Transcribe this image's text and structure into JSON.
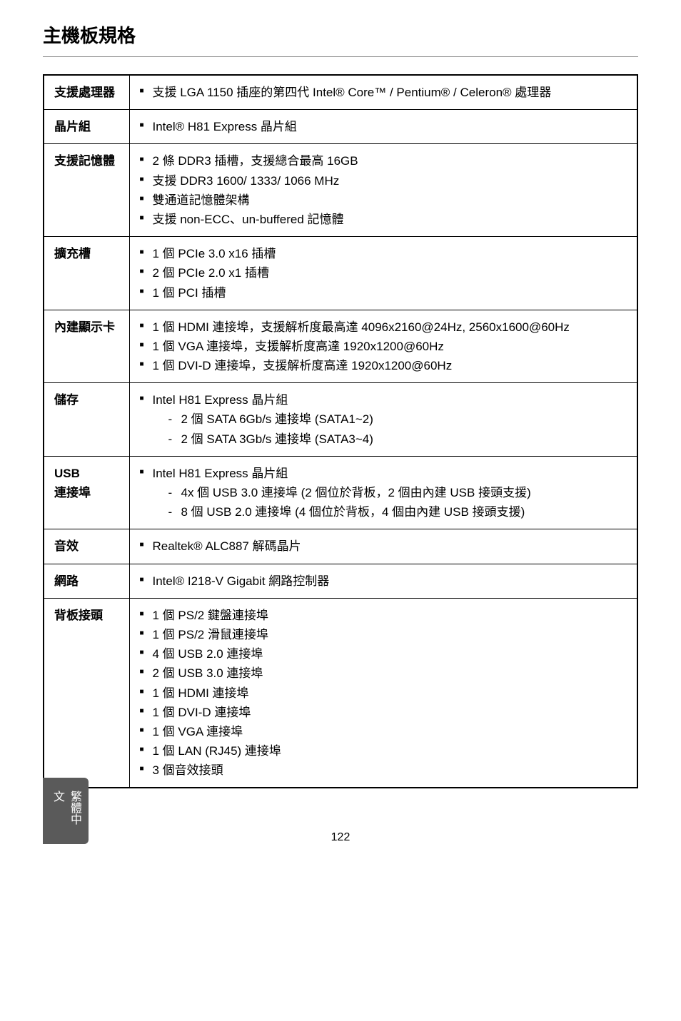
{
  "page": {
    "title": "主機板規格",
    "sideTab": "繁體中文",
    "pageNumber": "122"
  },
  "rows": [
    {
      "label": "支援處理器",
      "items": [
        {
          "text": "支援 LGA 1150 插座的第四代 Intel® Core™ / Pentium® / Celeron® 處理器"
        }
      ]
    },
    {
      "label": "晶片組",
      "items": [
        {
          "text": "Intel® H81 Express 晶片組"
        }
      ]
    },
    {
      "label": "支援記憶體",
      "items": [
        {
          "text": "2 條 DDR3 插槽，支援總合最高 16GB"
        },
        {
          "text": "支援 DDR3 1600/ 1333/ 1066 MHz"
        },
        {
          "text": "雙通道記憶體架構"
        },
        {
          "text": "支援 non-ECC、un-buffered 記憶體"
        }
      ]
    },
    {
      "label": "擴充槽",
      "items": [
        {
          "text": "1 個 PCIe 3.0 x16 插槽"
        },
        {
          "text": "2 個 PCIe 2.0 x1 插槽"
        },
        {
          "text": "1 個 PCI 插槽"
        }
      ]
    },
    {
      "label": "內建顯示卡",
      "items": [
        {
          "text": "1 個 HDMI 連接埠，支援解析度最高達 4096x2160@24Hz, 2560x1600@60Hz"
        },
        {
          "text": "1 個 VGA 連接埠，支援解析度高達 1920x1200@60Hz"
        },
        {
          "text": "1 個 DVI-D 連接埠，支援解析度高達 1920x1200@60Hz"
        }
      ]
    },
    {
      "label": "儲存",
      "items": [
        {
          "text": "Intel H81 Express 晶片組",
          "sub": [
            "2 個 SATA 6Gb/s 連接埠 (SATA1~2)",
            "2 個 SATA 3Gb/s 連接埠 (SATA3~4)"
          ]
        }
      ]
    },
    {
      "label": "USB\n連接埠",
      "items": [
        {
          "text": "Intel H81 Express 晶片組",
          "sub": [
            "4x 個 USB 3.0 連接埠 (2 個位於背板，2 個由內建 USB 接頭支援)",
            "8 個 USB 2.0 連接埠 (4 個位於背板，4 個由內建 USB 接頭支援)"
          ]
        }
      ]
    },
    {
      "label": "音效",
      "items": [
        {
          "text": "Realtek® ALC887 解碼晶片"
        }
      ]
    },
    {
      "label": "網路",
      "items": [
        {
          "text": "Intel® I218-V Gigabit 網路控制器"
        }
      ]
    },
    {
      "label": "背板接頭",
      "items": [
        {
          "text": "1 個 PS/2 鍵盤連接埠"
        },
        {
          "text": "1 個 PS/2 滑鼠連接埠"
        },
        {
          "text": "4 個 USB 2.0 連接埠"
        },
        {
          "text": "2 個 USB 3.0 連接埠"
        },
        {
          "text": "1 個 HDMI 連接埠"
        },
        {
          "text": "1 個 DVI-D 連接埠"
        },
        {
          "text": "1 個 VGA 連接埠"
        },
        {
          "text": "1 個 LAN (RJ45) 連接埠"
        },
        {
          "text": "3 個音效接頭"
        }
      ]
    }
  ]
}
